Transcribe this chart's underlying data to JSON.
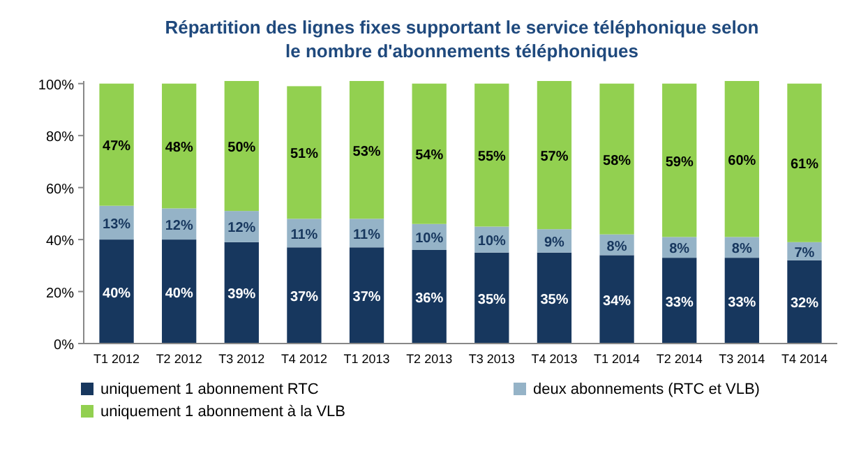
{
  "chart_data": {
    "type": "bar",
    "stacked": true,
    "title": "Répartition des lignes fixes supportant le service téléphonique selon le nombre d'abonnements téléphoniques",
    "categories": [
      "T1 2012",
      "T2 2012",
      "T3 2012",
      "T4 2012",
      "T1 2013",
      "T2 2013",
      "T3 2013",
      "T4 2013",
      "T1 2014",
      "T2 2014",
      "T3 2014",
      "T4 2014"
    ],
    "series": [
      {
        "name": "uniquement 1 abonnement RTC",
        "color": "#17375e",
        "values": [
          40,
          40,
          39,
          37,
          37,
          36,
          35,
          35,
          34,
          33,
          33,
          32
        ],
        "value_labels": [
          "40%",
          "40%",
          "39%",
          "37%",
          "37%",
          "36%",
          "35%",
          "35%",
          "34%",
          "33%",
          "33%",
          "32%"
        ]
      },
      {
        "name": "deux abonnements (RTC et VLB)",
        "color": "#95b3c7",
        "values": [
          13,
          12,
          12,
          11,
          11,
          10,
          10,
          9,
          8,
          8,
          8,
          7
        ],
        "value_labels": [
          "13%",
          "12%",
          "12%",
          "11%",
          "11%",
          "10%",
          "10%",
          "9%",
          "8%",
          "8%",
          "8%",
          "7%"
        ]
      },
      {
        "name": "uniquement 1 abonnement à la VLB",
        "color": "#92d050",
        "values": [
          47,
          48,
          50,
          51,
          53,
          54,
          55,
          57,
          58,
          59,
          60,
          61
        ],
        "value_labels": [
          "47%",
          "48%",
          "50%",
          "51%",
          "53%",
          "54%",
          "55%",
          "57%",
          "58%",
          "59%",
          "60%",
          "61%"
        ]
      }
    ],
    "ylim": [
      0,
      101
    ],
    "yticks": [
      {
        "value": 0,
        "label": "0%"
      },
      {
        "value": 20,
        "label": "20%"
      },
      {
        "value": 40,
        "label": "40%"
      },
      {
        "value": 60,
        "label": "60%"
      },
      {
        "value": 80,
        "label": "80%"
      },
      {
        "value": 100,
        "label": "100%"
      }
    ],
    "grid": false,
    "legend": "bottom"
  }
}
